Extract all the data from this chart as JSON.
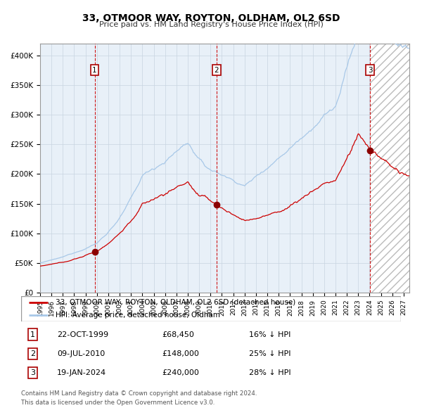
{
  "title": "33, OTMOOR WAY, ROYTON, OLDHAM, OL2 6SD",
  "subtitle": "Price paid vs. HM Land Registry's House Price Index (HPI)",
  "xlim_start": 1995.0,
  "xlim_end": 2027.5,
  "ylim": [
    0,
    420000
  ],
  "yticks": [
    0,
    50000,
    100000,
    150000,
    200000,
    250000,
    300000,
    350000,
    400000
  ],
  "ytick_labels": [
    "£0",
    "£50K",
    "£100K",
    "£150K",
    "£200K",
    "£250K",
    "£300K",
    "£350K",
    "£400K"
  ],
  "transactions": [
    {
      "label": "1",
      "date": "22-OCT-1999",
      "price": 68450,
      "year": 1999.8,
      "pct": "16%"
    },
    {
      "label": "2",
      "date": "09-JUL-2010",
      "price": 148000,
      "year": 2010.52,
      "pct": "25%"
    },
    {
      "label": "3",
      "date": "19-JAN-2024",
      "price": 240000,
      "year": 2024.05,
      "pct": "28%"
    }
  ],
  "legend_property_label": "33, OTMOOR WAY, ROYTON, OLDHAM, OL2 6SD (detached house)",
  "legend_hpi_label": "HPI: Average price, detached house, Oldham",
  "footer_line1": "Contains HM Land Registry data © Crown copyright and database right 2024.",
  "footer_line2": "This data is licensed under the Open Government Licence v3.0.",
  "hpi_color": "#A8C8E8",
  "property_color": "#CC0000",
  "background_fill": "#E8F0F8",
  "vline_color": "#CC0000",
  "grid_color": "#C8D4E0",
  "hatch_color": "#BBBBBB",
  "fig_width": 6.0,
  "fig_height": 5.9
}
